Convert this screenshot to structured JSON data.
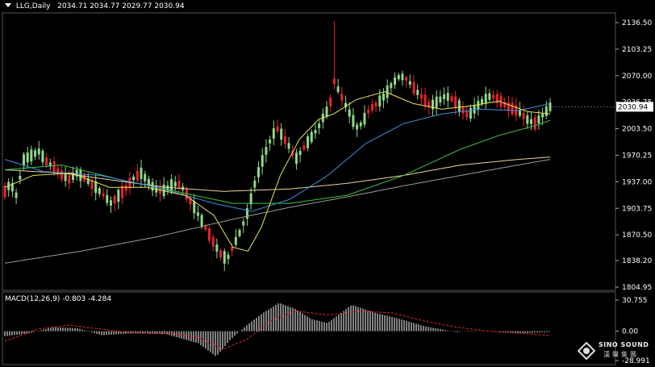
{
  "header": {
    "symbol": "LLG,Daily",
    "ohlc": "2034.71 2034.77 2029.77 2030.94"
  },
  "macd_header": {
    "label": "MACD(12,26,9) -0.803 -4.284"
  },
  "price_axis": {
    "ticks": [
      "2136.50",
      "2103.25",
      "2070.00",
      "2036.75",
      "2003.50",
      "1970.25",
      "1937.00",
      "1903.75",
      "1870.50",
      "1838.20",
      "1804.95"
    ],
    "current_price": "2030.94"
  },
  "macd_axis": {
    "ticks": [
      "30.755",
      "0.00",
      "-28.991"
    ]
  },
  "logo": {
    "name": "SINO SOUND",
    "chinese": "漢聲集團"
  },
  "colors": {
    "background": "#000000",
    "up_candle": "#8fd889",
    "down_candle": "#e8232a",
    "ma_yellow": "#e6e65a",
    "ma_blue": "#3a8fe6",
    "ma_green": "#3cc24a",
    "ma_khaki": "#e8d9a0",
    "ma_grey": "#9a9a9a",
    "macd_line": "#e8232a",
    "macd_hist": "#ffffff"
  },
  "chart_data": {
    "type": "candlestick",
    "ylim": [
      1804.95,
      2136.5
    ],
    "macd_ylim": [
      -28.991,
      30.755
    ],
    "anchors": [
      [
        0,
        1925
      ],
      [
        6,
        1935
      ],
      [
        12,
        1920
      ],
      [
        20,
        1965
      ],
      [
        28,
        1970
      ],
      [
        36,
        1975
      ],
      [
        44,
        1962
      ],
      [
        52,
        1955
      ],
      [
        60,
        1945
      ],
      [
        68,
        1940
      ],
      [
        76,
        1948
      ],
      [
        84,
        1942
      ],
      [
        90,
        1935
      ],
      [
        96,
        1930
      ],
      [
        104,
        1920
      ],
      [
        112,
        1910
      ],
      [
        120,
        1920
      ],
      [
        128,
        1930
      ],
      [
        136,
        1942
      ],
      [
        144,
        1948
      ],
      [
        150,
        1938
      ],
      [
        158,
        1928
      ],
      [
        166,
        1925
      ],
      [
        174,
        1932
      ],
      [
        182,
        1935
      ],
      [
        188,
        1928
      ],
      [
        196,
        1912
      ],
      [
        204,
        1895
      ],
      [
        212,
        1878
      ],
      [
        220,
        1860
      ],
      [
        228,
        1845
      ],
      [
        234,
        1840
      ],
      [
        240,
        1855
      ],
      [
        248,
        1875
      ],
      [
        256,
        1900
      ],
      [
        262,
        1930
      ],
      [
        270,
        1960
      ],
      [
        278,
        1985
      ],
      [
        286,
        2005
      ],
      [
        292,
        1995
      ],
      [
        300,
        1980
      ],
      [
        306,
        1965
      ],
      [
        312,
        1975
      ],
      [
        318,
        1985
      ],
      [
        324,
        1995
      ],
      [
        330,
        2005
      ],
      [
        336,
        2020
      ],
      [
        342,
        2030
      ],
      [
        346,
        2065
      ],
      [
        352,
        2050
      ],
      [
        358,
        2035
      ],
      [
        364,
        2020
      ],
      [
        370,
        2005
      ],
      [
        376,
        2010
      ],
      [
        384,
        2028
      ],
      [
        392,
        2035
      ],
      [
        400,
        2045
      ],
      [
        408,
        2060
      ],
      [
        416,
        2070
      ],
      [
        424,
        2065
      ],
      [
        432,
        2052
      ],
      [
        440,
        2042
      ],
      [
        448,
        2032
      ],
      [
        456,
        2038
      ],
      [
        464,
        2045
      ],
      [
        472,
        2040
      ],
      [
        480,
        2030
      ],
      [
        488,
        2020
      ],
      [
        496,
        2030
      ],
      [
        504,
        2040
      ],
      [
        512,
        2045
      ],
      [
        520,
        2040
      ],
      [
        528,
        2032
      ],
      [
        536,
        2028
      ],
      [
        544,
        2022
      ],
      [
        550,
        2015
      ],
      [
        558,
        2010
      ],
      [
        566,
        2020
      ],
      [
        574,
        2031
      ]
    ],
    "ma_series": [
      {
        "key": "ma_khaki",
        "points": [
          [
            0,
            1952
          ],
          [
            60,
            1948
          ],
          [
            120,
            1938
          ],
          [
            170,
            1930
          ],
          [
            230,
            1925
          ],
          [
            300,
            1928
          ],
          [
            360,
            1935
          ],
          [
            420,
            1945
          ],
          [
            480,
            1958
          ],
          [
            540,
            1965
          ],
          [
            574,
            1968
          ]
        ]
      },
      {
        "key": "ma_grey",
        "points": [
          [
            0,
            1835
          ],
          [
            80,
            1850
          ],
          [
            160,
            1868
          ],
          [
            240,
            1890
          ],
          [
            300,
            1905
          ],
          [
            360,
            1918
          ],
          [
            420,
            1932
          ],
          [
            480,
            1945
          ],
          [
            540,
            1958
          ],
          [
            574,
            1965
          ]
        ]
      },
      {
        "key": "ma_green",
        "points": [
          [
            0,
            1952
          ],
          [
            60,
            1958
          ],
          [
            120,
            1940
          ],
          [
            180,
            1925
          ],
          [
            240,
            1910
          ],
          [
            300,
            1910
          ],
          [
            360,
            1920
          ],
          [
            420,
            1945
          ],
          [
            480,
            1978
          ],
          [
            520,
            1995
          ],
          [
            560,
            2008
          ],
          [
            574,
            2014
          ]
        ]
      },
      {
        "key": "ma_blue",
        "points": [
          [
            0,
            1965
          ],
          [
            40,
            1950
          ],
          [
            100,
            1945
          ],
          [
            160,
            1930
          ],
          [
            220,
            1910
          ],
          [
            260,
            1900
          ],
          [
            300,
            1915
          ],
          [
            340,
            1945
          ],
          [
            380,
            1985
          ],
          [
            420,
            2010
          ],
          [
            460,
            2022
          ],
          [
            500,
            2028
          ],
          [
            540,
            2026
          ],
          [
            574,
            2035
          ]
        ]
      },
      {
        "key": "ma_yellow",
        "points": [
          [
            0,
            1930
          ],
          [
            30,
            1945
          ],
          [
            70,
            1948
          ],
          [
            110,
            1930
          ],
          [
            150,
            1930
          ],
          [
            190,
            1920
          ],
          [
            220,
            1895
          ],
          [
            240,
            1855
          ],
          [
            256,
            1850
          ],
          [
            270,
            1880
          ],
          [
            290,
            1945
          ],
          [
            310,
            1990
          ],
          [
            330,
            2015
          ],
          [
            346,
            2022
          ],
          [
            370,
            2040
          ],
          [
            400,
            2050
          ],
          [
            430,
            2035
          ],
          [
            460,
            2028
          ],
          [
            490,
            2032
          ],
          [
            520,
            2038
          ],
          [
            550,
            2025
          ],
          [
            574,
            2022
          ]
        ]
      }
    ]
  }
}
